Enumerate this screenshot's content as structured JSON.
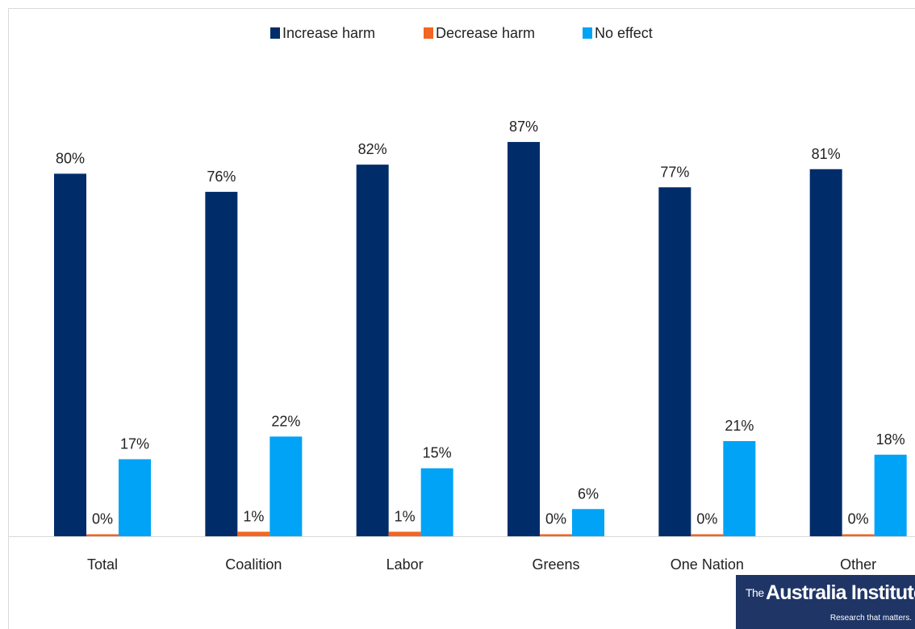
{
  "chart_data": {
    "type": "bar",
    "categories": [
      "Total",
      "Coalition",
      "Labor",
      "Greens",
      "One Nation",
      "Other"
    ],
    "series": [
      {
        "name": "Increase harm",
        "color": "#002D6A",
        "values": [
          80,
          76,
          82,
          87,
          77,
          81
        ],
        "labels": [
          "80%",
          "76%",
          "82%",
          "87%",
          "77%",
          "81%"
        ]
      },
      {
        "name": "Decrease harm",
        "color": "#F26522",
        "values": [
          0,
          1,
          1,
          0,
          0,
          0
        ],
        "labels": [
          "0%",
          "1%",
          "1%",
          "0%",
          "0%",
          "0%"
        ]
      },
      {
        "name": "No effect",
        "color": "#00A3F5",
        "values": [
          17,
          22,
          15,
          6,
          21,
          18
        ],
        "labels": [
          "17%",
          "22%",
          "15%",
          "6%",
          "21%",
          "18%"
        ]
      }
    ],
    "ylim": [
      0,
      100
    ],
    "grid": false,
    "legend_position": "top",
    "title": "",
    "xlabel": "",
    "ylabel": ""
  },
  "branding": {
    "logo_prefix": "The",
    "logo_name": "Australia Institute",
    "tagline": "Research that matters."
  }
}
